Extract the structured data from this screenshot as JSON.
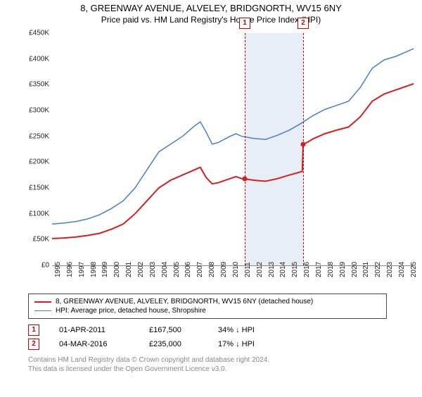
{
  "title": "8, GREENWAY AVENUE, ALVELEY, BRIDGNORTH, WV15 6NY",
  "subtitle": "Price paid vs. HM Land Registry's House Price Index (HPI)",
  "chart": {
    "type": "line",
    "background_color": "#ffffff",
    "shade_color": "#e8eef7",
    "marker_dash_color": "#c00",
    "x_years": [
      1995,
      1996,
      1997,
      1998,
      1999,
      2000,
      2001,
      2002,
      2003,
      2004,
      2005,
      2006,
      2007,
      2008,
      2009,
      2010,
      2011,
      2012,
      2013,
      2014,
      2015,
      2016,
      2017,
      2018,
      2019,
      2020,
      2021,
      2022,
      2023,
      2024,
      2025
    ],
    "x_min": 1995,
    "x_max": 2025.6,
    "y_min": 0,
    "y_max": 450000,
    "y_ticks": [
      0,
      50000,
      100000,
      150000,
      200000,
      250000,
      300000,
      350000,
      400000,
      450000
    ],
    "y_tick_labels": [
      "£0",
      "£50K",
      "£100K",
      "£150K",
      "£200K",
      "£250K",
      "£300K",
      "£350K",
      "£400K",
      "£450K"
    ],
    "shade_start_year": 2011.25,
    "shade_end_year": 2016.17,
    "series": [
      {
        "name": "price_paid",
        "color": "#d81e1e",
        "width": 2,
        "points": [
          [
            1995,
            52000
          ],
          [
            1996,
            53000
          ],
          [
            1997,
            55000
          ],
          [
            1998,
            58000
          ],
          [
            1999,
            62000
          ],
          [
            2000,
            70000
          ],
          [
            2001,
            80000
          ],
          [
            2002,
            100000
          ],
          [
            2003,
            125000
          ],
          [
            2004,
            150000
          ],
          [
            2005,
            165000
          ],
          [
            2006,
            175000
          ],
          [
            2007,
            185000
          ],
          [
            2007.5,
            190000
          ],
          [
            2008,
            170000
          ],
          [
            2008.5,
            158000
          ],
          [
            2009,
            160000
          ],
          [
            2010,
            168000
          ],
          [
            2010.5,
            172000
          ],
          [
            2011,
            168000
          ],
          [
            2011.25,
            167500
          ],
          [
            2012,
            165000
          ],
          [
            2013,
            163000
          ],
          [
            2014,
            168000
          ],
          [
            2015,
            175000
          ],
          [
            2015.8,
            180000
          ],
          [
            2016.1,
            182000
          ],
          [
            2016.17,
            235000
          ],
          [
            2016.5,
            238000
          ],
          [
            2017,
            245000
          ],
          [
            2018,
            255000
          ],
          [
            2019,
            262000
          ],
          [
            2020,
            268000
          ],
          [
            2021,
            288000
          ],
          [
            2022,
            318000
          ],
          [
            2023,
            332000
          ],
          [
            2024,
            340000
          ],
          [
            2025,
            348000
          ],
          [
            2025.5,
            352000
          ]
        ]
      },
      {
        "name": "hpi",
        "color": "#4a7ec8",
        "width": 1.5,
        "points": [
          [
            1995,
            80000
          ],
          [
            1996,
            82000
          ],
          [
            1997,
            85000
          ],
          [
            1998,
            90000
          ],
          [
            1999,
            98000
          ],
          [
            2000,
            110000
          ],
          [
            2001,
            125000
          ],
          [
            2002,
            150000
          ],
          [
            2003,
            185000
          ],
          [
            2004,
            220000
          ],
          [
            2005,
            235000
          ],
          [
            2006,
            250000
          ],
          [
            2007,
            270000
          ],
          [
            2007.5,
            278000
          ],
          [
            2008,
            258000
          ],
          [
            2008.5,
            235000
          ],
          [
            2009,
            238000
          ],
          [
            2010,
            250000
          ],
          [
            2010.5,
            255000
          ],
          [
            2011,
            250000
          ],
          [
            2012,
            246000
          ],
          [
            2013,
            244000
          ],
          [
            2014,
            252000
          ],
          [
            2015,
            262000
          ],
          [
            2016,
            275000
          ],
          [
            2017,
            290000
          ],
          [
            2018,
            302000
          ],
          [
            2019,
            310000
          ],
          [
            2020,
            318000
          ],
          [
            2021,
            345000
          ],
          [
            2022,
            382000
          ],
          [
            2023,
            398000
          ],
          [
            2024,
            405000
          ],
          [
            2025,
            415000
          ],
          [
            2025.5,
            420000
          ]
        ]
      }
    ],
    "sale_markers": [
      {
        "num": "1",
        "year": 2011.25,
        "price": 167500
      },
      {
        "num": "2",
        "year": 2016.17,
        "price": 235000
      }
    ]
  },
  "legend": {
    "items": [
      {
        "color": "#d81e1e",
        "width": 2,
        "label": "8, GREENWAY AVENUE, ALVELEY, BRIDGNORTH, WV15 6NY (detached house)"
      },
      {
        "color": "#4a7ec8",
        "width": 1.5,
        "label": "HPI: Average price, detached house, Shropshire"
      }
    ]
  },
  "events": [
    {
      "num": "1",
      "date": "01-APR-2011",
      "price": "£167,500",
      "hpi": "34% ↓ HPI"
    },
    {
      "num": "2",
      "date": "04-MAR-2016",
      "price": "£235,000",
      "hpi": "17% ↓ HPI"
    }
  ],
  "footer": {
    "line1": "Contains HM Land Registry data © Crown copyright and database right 2024.",
    "line2": "This data is licensed under the Open Government Licence v3.0."
  }
}
